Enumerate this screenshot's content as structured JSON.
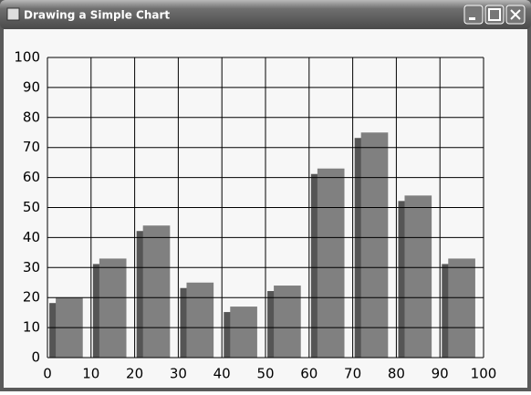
{
  "window": {
    "title": "Drawing a Simple Chart"
  },
  "chart_data": {
    "type": "bar",
    "x": [
      5,
      15,
      25,
      35,
      45,
      55,
      65,
      75,
      85,
      95
    ],
    "values": [
      20,
      33,
      44,
      25,
      17,
      24,
      63,
      75,
      54,
      33
    ],
    "color": "#808080",
    "side_color": "#555555",
    "xlim": [
      0,
      100
    ],
    "xticks": [
      0,
      10,
      20,
      30,
      40,
      50,
      60,
      70,
      80,
      90,
      100
    ],
    "ylim": [
      0,
      100
    ],
    "yticks": [
      0,
      10,
      20,
      30,
      40,
      50,
      60,
      70,
      80,
      90,
      100
    ],
    "grid": true
  }
}
